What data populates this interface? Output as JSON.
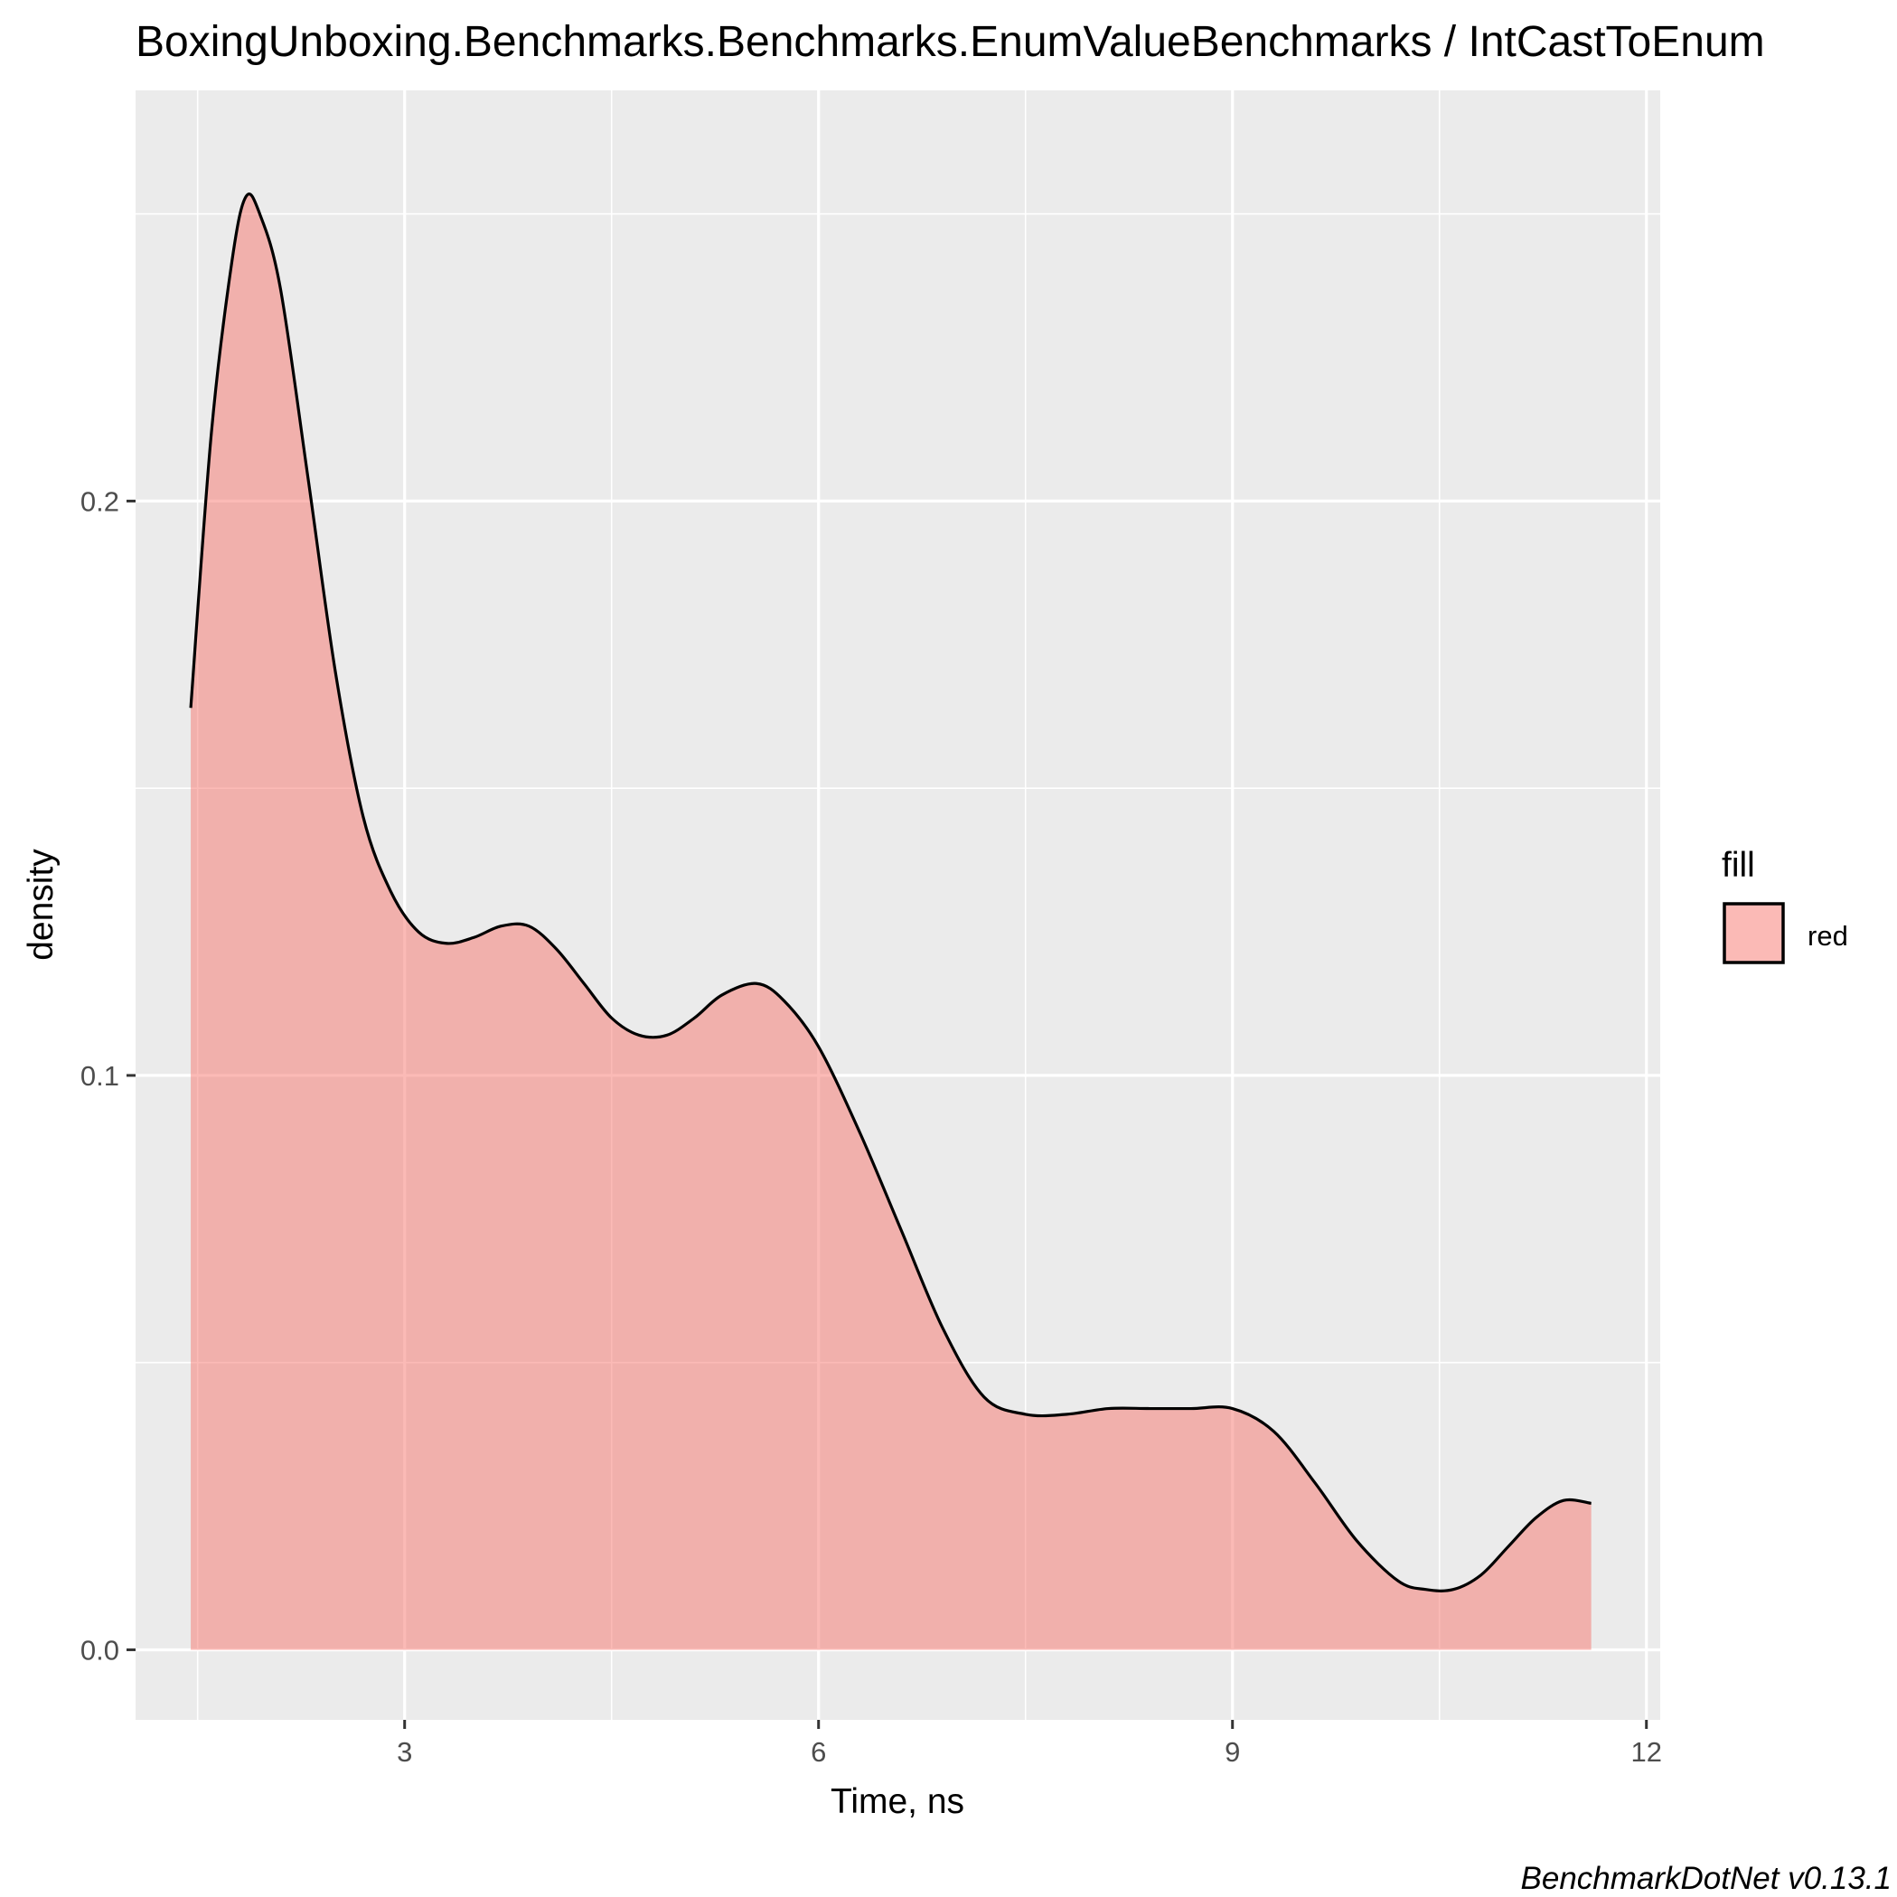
{
  "chart_data": {
    "type": "area",
    "title": "BoxingUnboxing.Benchmarks.Benchmarks.EnumValueBenchmarks / IntCastToEnum",
    "xlabel": "Time, ns",
    "ylabel": "density",
    "xlim": [
      1.05,
      12.1
    ],
    "ylim": [
      -0.0122,
      0.2715
    ],
    "x_ticks": [
      3,
      6,
      9,
      12
    ],
    "y_ticks": [
      0.0,
      0.1,
      0.2
    ],
    "x_tick_labels": [
      "3",
      "6",
      "9",
      "12"
    ],
    "y_tick_labels": [
      "0.0",
      "0.1",
      "0.2"
    ],
    "grid": true,
    "legend": {
      "title": "fill",
      "position": "right",
      "entries": [
        {
          "label": "red",
          "color": "#F8766D"
        }
      ]
    },
    "caption": "BenchmarkDotNet v0.13.1",
    "series": [
      {
        "name": "red",
        "fill": "#F8766D",
        "x": [
          1.45,
          1.6,
          1.75,
          1.85,
          1.95,
          2.1,
          2.3,
          2.5,
          2.7,
          2.9,
          3.1,
          3.3,
          3.5,
          3.7,
          3.9,
          4.1,
          4.3,
          4.5,
          4.7,
          4.9,
          5.1,
          5.3,
          5.55,
          5.75,
          6.0,
          6.3,
          6.6,
          6.9,
          7.2,
          7.5,
          7.8,
          8.1,
          8.4,
          8.7,
          9.0,
          9.3,
          9.6,
          9.9,
          10.2,
          10.4,
          10.6,
          10.8,
          11.0,
          11.2,
          11.4,
          11.6
        ],
        "y": [
          0.164,
          0.212,
          0.242,
          0.253,
          0.25,
          0.237,
          0.204,
          0.17,
          0.145,
          0.132,
          0.125,
          0.123,
          0.124,
          0.126,
          0.126,
          0.122,
          0.116,
          0.11,
          0.107,
          0.107,
          0.11,
          0.114,
          0.116,
          0.113,
          0.105,
          0.09,
          0.073,
          0.056,
          0.044,
          0.041,
          0.041,
          0.042,
          0.042,
          0.042,
          0.042,
          0.038,
          0.029,
          0.019,
          0.012,
          0.0105,
          0.0105,
          0.013,
          0.018,
          0.023,
          0.026,
          0.0255
        ]
      }
    ]
  }
}
